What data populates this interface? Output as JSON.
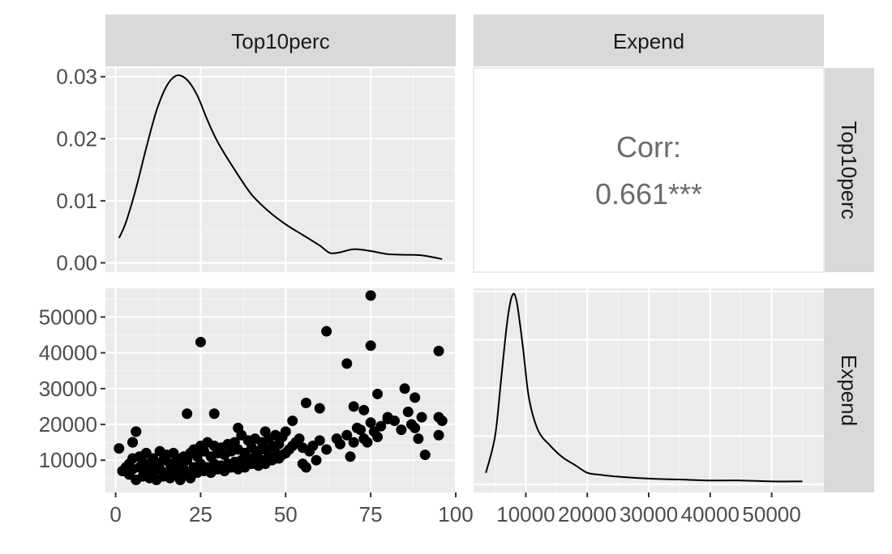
{
  "chart_data": {
    "type": "scatter",
    "variables": [
      "Top10perc",
      "Expend"
    ],
    "correlation": {
      "label": "Corr:",
      "value": "0.661***"
    },
    "panels": {
      "top10perc_density": {
        "type": "line",
        "x": [
          1,
          3,
          6,
          9,
          12,
          15,
          18,
          21,
          24,
          27,
          30,
          35,
          40,
          45,
          50,
          55,
          60,
          63,
          66,
          70,
          75,
          80,
          85,
          90,
          96
        ],
        "y": [
          0.004,
          0.0065,
          0.012,
          0.0185,
          0.0245,
          0.0285,
          0.0302,
          0.0295,
          0.027,
          0.023,
          0.0195,
          0.015,
          0.011,
          0.0083,
          0.0062,
          0.0045,
          0.0028,
          0.0016,
          0.0017,
          0.0022,
          0.0019,
          0.0014,
          0.0013,
          0.0012,
          0.0006
        ],
        "xlim": [
          -3,
          100
        ],
        "ylim": [
          -0.0015,
          0.0314
        ],
        "yticks": [
          0,
          0.01,
          0.02,
          0.03
        ],
        "ytick_labels": [
          "0.00",
          "0.01",
          "0.02",
          "0.03"
        ]
      },
      "expend_density": {
        "type": "line",
        "x": [
          3500,
          5000,
          6000,
          7000,
          7800,
          8500,
          9500,
          10500,
          12000,
          14000,
          16000,
          18000,
          20000,
          22000,
          25000,
          30000,
          35000,
          40000,
          45000,
          50000,
          55000
        ],
        "y": [
          0.06,
          0.25,
          0.55,
          0.85,
          0.98,
          0.95,
          0.72,
          0.45,
          0.28,
          0.2,
          0.14,
          0.1,
          0.06,
          0.05,
          0.04,
          0.03,
          0.025,
          0.02,
          0.02,
          0.015,
          0.015
        ],
        "xlim": [
          1500,
          58500
        ],
        "xticks": [
          10000,
          20000,
          30000,
          40000,
          50000
        ],
        "xtick_labels": [
          "10000",
          "20000",
          "30000",
          "40000",
          "50000"
        ]
      },
      "scatter": {
        "type": "scatter",
        "x": [
          1,
          2,
          3,
          4,
          4,
          5,
          5,
          5,
          6,
          6,
          7,
          7,
          8,
          8,
          9,
          9,
          10,
          10,
          11,
          11,
          12,
          12,
          13,
          13,
          14,
          14,
          15,
          15,
          16,
          16,
          17,
          17,
          18,
          18,
          19,
          19,
          20,
          20,
          21,
          21,
          22,
          22,
          23,
          23,
          24,
          24,
          25,
          25,
          26,
          26,
          27,
          27,
          28,
          28,
          29,
          29,
          30,
          30,
          31,
          31,
          32,
          32,
          33,
          33,
          34,
          34,
          35,
          35,
          36,
          36,
          37,
          37,
          38,
          38,
          39,
          39,
          40,
          40,
          41,
          41,
          42,
          42,
          43,
          43,
          44,
          44,
          45,
          45,
          46,
          46,
          47,
          47,
          48,
          48,
          49,
          49,
          50,
          50,
          51,
          52,
          53,
          54,
          55,
          55,
          56,
          57,
          58,
          59,
          60,
          62,
          65,
          66,
          68,
          69,
          70,
          71,
          72,
          73,
          74,
          75,
          76,
          77,
          78,
          80,
          82,
          84,
          86,
          87,
          88,
          89,
          90,
          91,
          95,
          95,
          96,
          5,
          6,
          21,
          25,
          29,
          36,
          44,
          52,
          56,
          60,
          62,
          68,
          70,
          73,
          75,
          75,
          77,
          80,
          85,
          88,
          95
        ],
        "y": [
          13300,
          7000,
          8000,
          9000,
          6000,
          10500,
          15000,
          7500,
          18000,
          4500,
          8000,
          11000,
          5500,
          9500,
          7000,
          12000,
          5000,
          9000,
          6500,
          10500,
          4500,
          8500,
          7500,
          12500,
          5500,
          10000,
          6500,
          11500,
          5000,
          9000,
          7000,
          12000,
          6000,
          10500,
          4500,
          8500,
          7500,
          11000,
          6000,
          10000,
          5000,
          12000,
          8000,
          13000,
          6500,
          11000,
          9000,
          14000,
          7000,
          12500,
          8000,
          15000,
          6500,
          11000,
          9000,
          14000,
          7500,
          12000,
          8500,
          13500,
          7000,
          11500,
          9000,
          14500,
          8000,
          12500,
          9500,
          15000,
          7500,
          13000,
          10000,
          17000,
          8000,
          12000,
          10500,
          15500,
          9000,
          13500,
          11000,
          16000,
          8500,
          12500,
          10000,
          15000,
          9000,
          13000,
          11000,
          16000,
          10000,
          14000,
          12000,
          17000,
          10500,
          14500,
          11500,
          16500,
          12000,
          18000,
          13000,
          14000,
          15000,
          16000,
          9000,
          13500,
          8000,
          12500,
          14000,
          10000,
          15500,
          13000,
          16000,
          14500,
          17000,
          11000,
          15000,
          19000,
          18500,
          16000,
          15000,
          20500,
          18000,
          16500,
          19500,
          22000,
          21000,
          18500,
          23500,
          20000,
          19000,
          16000,
          22000,
          11500,
          17000,
          22000,
          21000,
          15000,
          18000,
          23000,
          43000,
          23000,
          19000,
          18000,
          21000,
          26000,
          24500,
          46000,
          37000,
          25000,
          24000,
          56000,
          42000,
          28500,
          21500,
          30000,
          27500,
          40500
        ],
        "xlim": [
          -3,
          100
        ],
        "ylim": [
          1000,
          58000
        ],
        "xticks": [
          0,
          25,
          50,
          75,
          100
        ],
        "xtick_labels": [
          "0",
          "25",
          "50",
          "75",
          "100"
        ],
        "yticks": [
          10000,
          20000,
          30000,
          40000,
          50000
        ],
        "ytick_labels": [
          "10000",
          "20000",
          "30000",
          "40000",
          "50000"
        ]
      }
    }
  }
}
